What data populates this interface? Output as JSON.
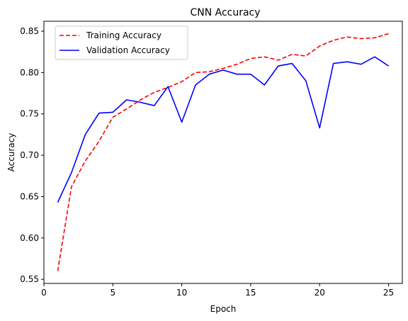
{
  "chart_data": {
    "type": "line",
    "title": "CNN Accuracy",
    "xlabel": "Epoch",
    "ylabel": "Accuracy",
    "xlim": [
      0,
      26
    ],
    "ylim": [
      0.545,
      0.862
    ],
    "x_ticks": [
      0,
      5,
      10,
      15,
      20,
      25
    ],
    "x_tick_labels": [
      "0",
      "5",
      "10",
      "15",
      "20",
      "25"
    ],
    "y_ticks": [
      0.55,
      0.6,
      0.65,
      0.7,
      0.75,
      0.8,
      0.85
    ],
    "y_tick_labels": [
      "0.55",
      "0.60",
      "0.65",
      "0.70",
      "0.75",
      "0.80",
      "0.85"
    ],
    "grid": false,
    "legend_position": "top-left",
    "x": [
      1,
      2,
      3,
      4,
      5,
      6,
      7,
      8,
      9,
      10,
      11,
      12,
      13,
      14,
      15,
      16,
      17,
      18,
      19,
      20,
      21,
      22,
      23,
      24,
      25
    ],
    "series": [
      {
        "name": "Training Accuracy",
        "color": "#ff0000",
        "style": "dashed",
        "values": [
          0.56,
          0.662,
          0.693,
          0.717,
          0.746,
          0.756,
          0.767,
          0.776,
          0.782,
          0.789,
          0.8,
          0.801,
          0.805,
          0.81,
          0.817,
          0.819,
          0.815,
          0.822,
          0.82,
          0.832,
          0.839,
          0.843,
          0.841,
          0.842,
          0.847
        ]
      },
      {
        "name": "Validation Accuracy",
        "color": "#0000ff",
        "style": "solid",
        "values": [
          0.643,
          0.679,
          0.725,
          0.751,
          0.752,
          0.767,
          0.764,
          0.76,
          0.783,
          0.74,
          0.785,
          0.798,
          0.803,
          0.798,
          0.798,
          0.785,
          0.808,
          0.811,
          0.79,
          0.733,
          0.811,
          0.813,
          0.81,
          0.819,
          0.808
        ]
      }
    ]
  }
}
